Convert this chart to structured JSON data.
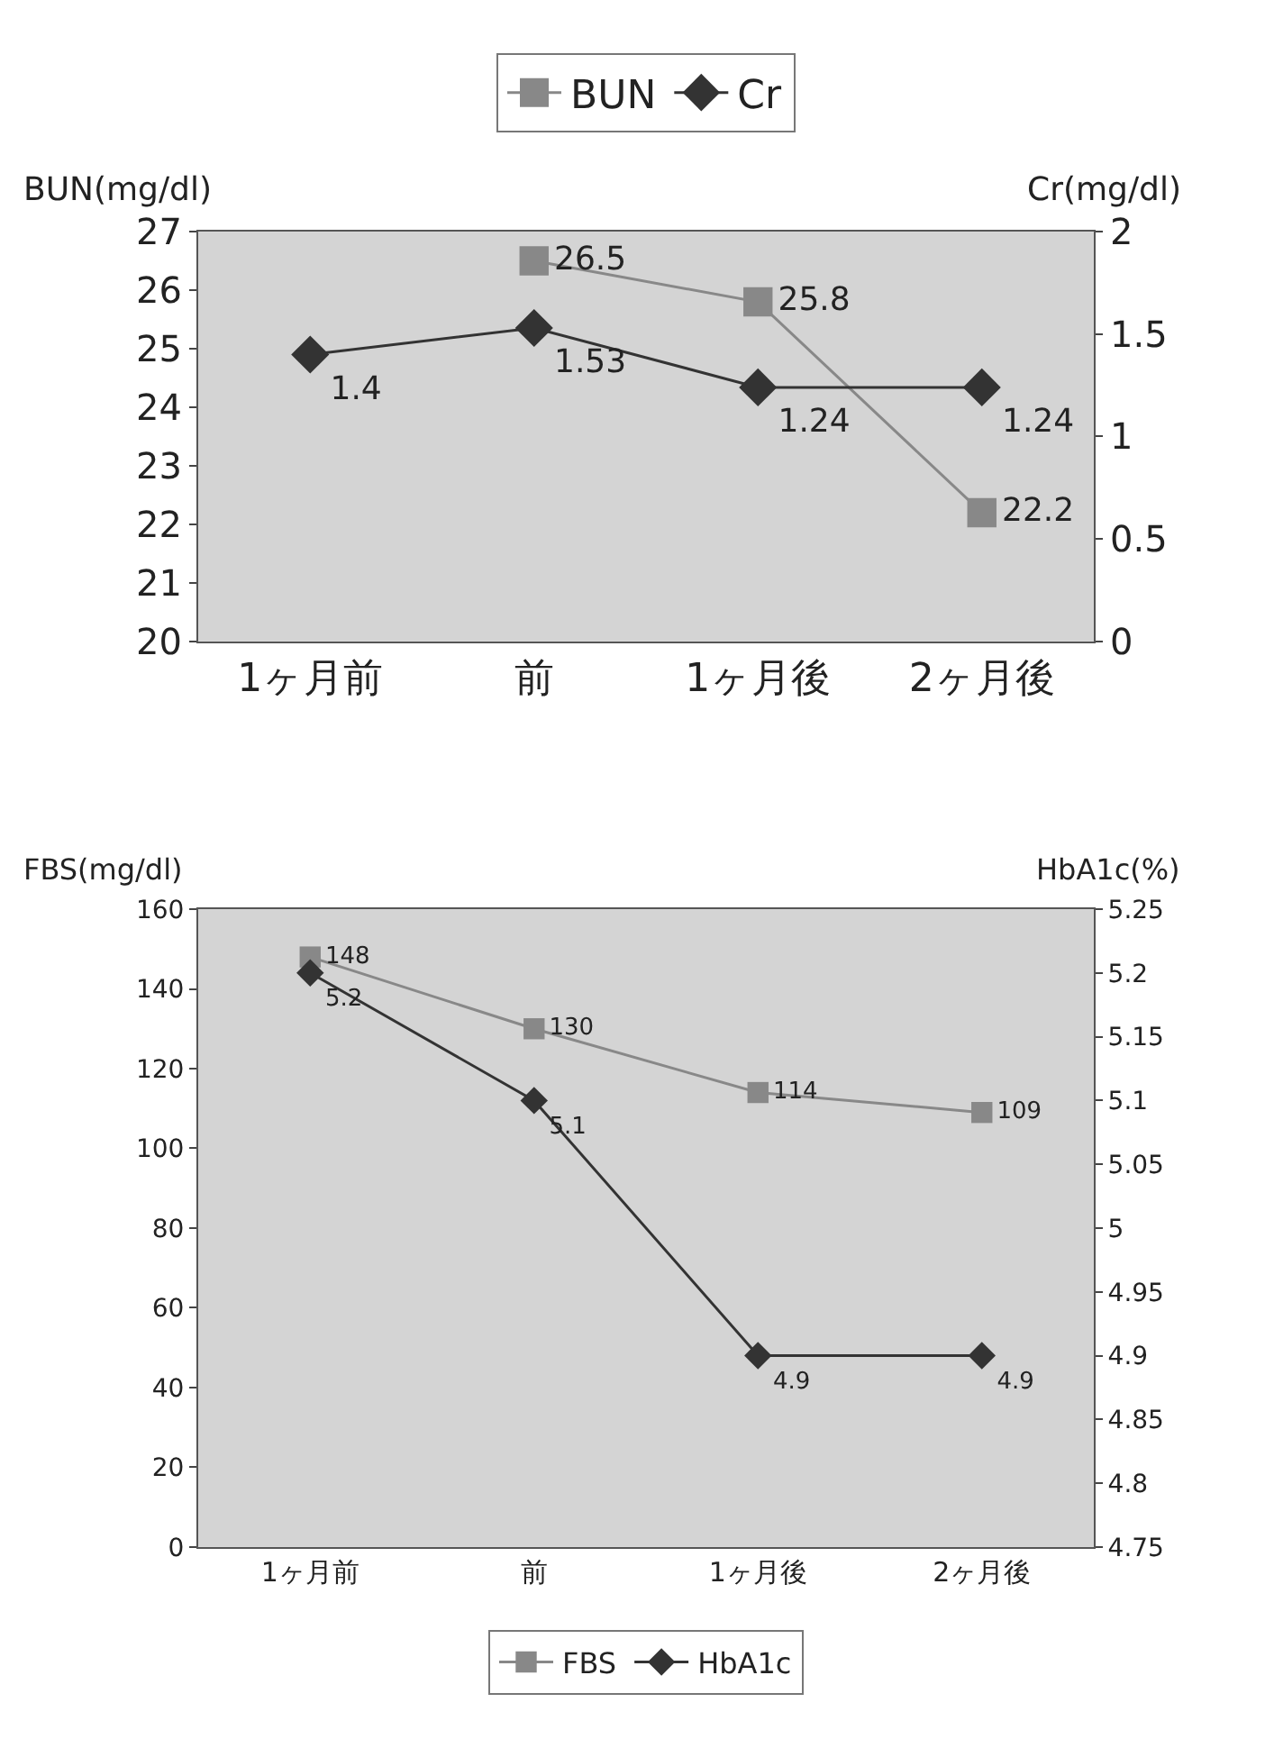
{
  "chart_data": [
    {
      "type": "line",
      "categories": [
        "1ヶ月前",
        "前",
        "1ヶ月後",
        "2ヶ月後"
      ],
      "ylabel": "BUN(mg/dl)",
      "y2label": "Cr(mg/dl)",
      "ylim": [
        20,
        27
      ],
      "yticks": [
        20,
        21,
        22,
        23,
        24,
        25,
        26,
        27
      ],
      "y2lim": [
        0,
        2
      ],
      "y2ticks": [
        0,
        0.5,
        1,
        1.5,
        2
      ],
      "grid": false,
      "legend": "top",
      "data_labels": true,
      "series": [
        {
          "name": "BUN",
          "color": "#888888",
          "marker": "square",
          "values": [
            null,
            26.5,
            25.8,
            22.2
          ]
        },
        {
          "name": "Cr",
          "color": "#333333",
          "marker": "diamond",
          "axis": "y2",
          "values": [
            1.4,
            1.53,
            1.24,
            1.24
          ]
        }
      ]
    },
    {
      "type": "line",
      "categories": [
        "1ヶ月前",
        "前",
        "1ヶ月後",
        "2ヶ月後"
      ],
      "ylabel": "FBS(mg/dl)",
      "y2label": "HbA1c(%)",
      "ylim": [
        0,
        160
      ],
      "yticks": [
        0,
        20,
        40,
        60,
        80,
        100,
        120,
        140,
        160
      ],
      "y2lim": [
        4.75,
        5.25
      ],
      "y2ticks": [
        4.75,
        4.8,
        4.85,
        4.9,
        4.95,
        5,
        5.05,
        5.1,
        5.15,
        5.2,
        5.25
      ],
      "grid": false,
      "legend": "bottom",
      "data_labels": true,
      "series": [
        {
          "name": "FBS",
          "color": "#888888",
          "marker": "square",
          "values": [
            148,
            130,
            114,
            109
          ]
        },
        {
          "name": "HbA1c",
          "color": "#333333",
          "marker": "diamond",
          "axis": "y2",
          "values": [
            5.2,
            5.1,
            4.9,
            4.9
          ]
        }
      ]
    }
  ]
}
